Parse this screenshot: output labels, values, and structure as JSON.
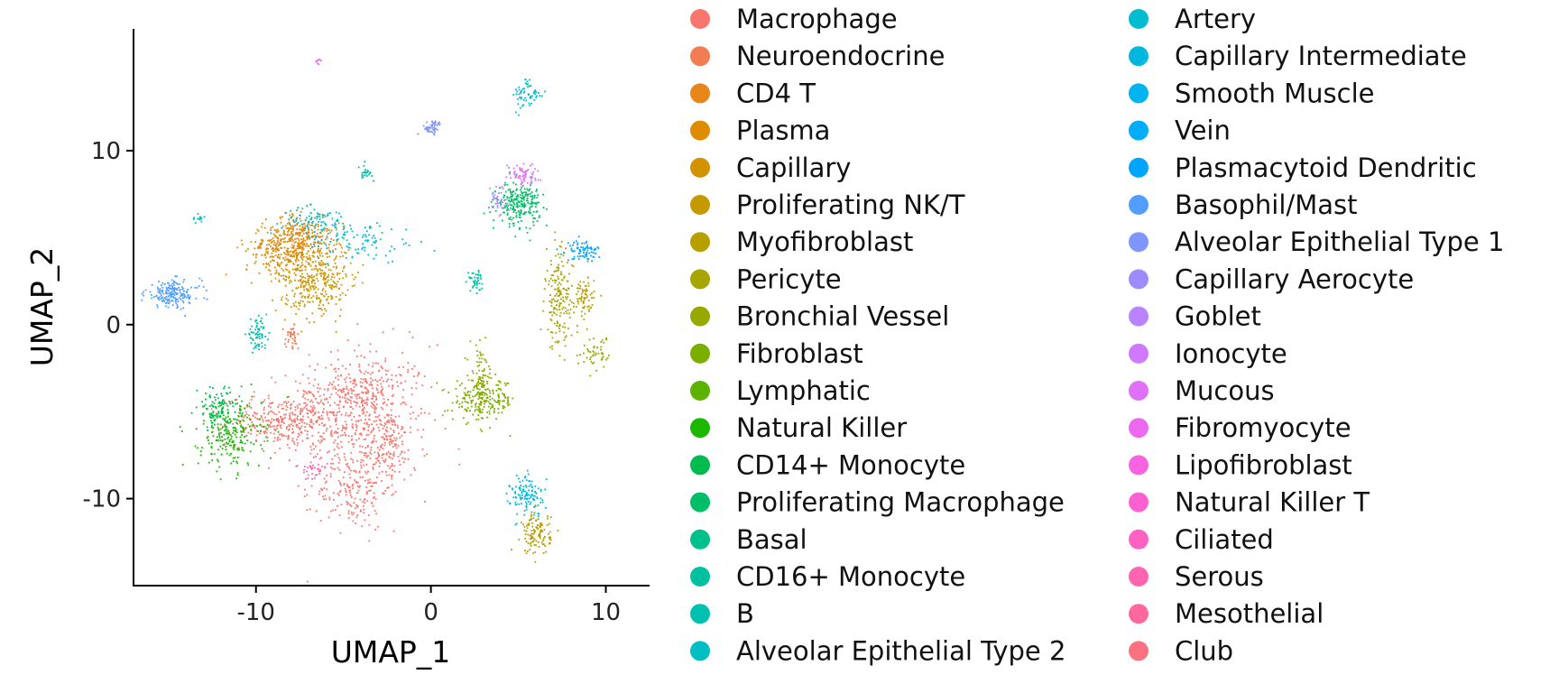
{
  "chart_data": {
    "type": "scatter",
    "title": "",
    "xlabel": "UMAP_1",
    "ylabel": "UMAP_2",
    "xlim": [
      -17,
      12.5
    ],
    "ylim": [
      -15,
      17
    ],
    "xticks": [
      -10,
      0,
      10
    ],
    "yticks": [
      -10,
      0,
      10
    ],
    "xtick_labels": [
      "-10",
      "0",
      "10"
    ],
    "ytick_labels": [
      "-10",
      "0",
      "10"
    ],
    "grid": false,
    "legend_position": "right",
    "categories": [
      {
        "name": "Macrophage",
        "color": "#F8766D"
      },
      {
        "name": "Neuroendocrine",
        "color": "#F27D52"
      },
      {
        "name": "CD4 T",
        "color": "#E8861A"
      },
      {
        "name": "Plasma",
        "color": "#DE8C00"
      },
      {
        "name": "Capillary",
        "color": "#D39200"
      },
      {
        "name": "Proliferating NK/T",
        "color": "#C59A00"
      },
      {
        "name": "Myofibroblast",
        "color": "#B79F00"
      },
      {
        "name": "Pericyte",
        "color": "#A8A400"
      },
      {
        "name": "Bronchial Vessel",
        "color": "#97A900"
      },
      {
        "name": "Fibroblast",
        "color": "#7CAE00"
      },
      {
        "name": "Lymphatic",
        "color": "#5BB300"
      },
      {
        "name": "Natural Killer",
        "color": "#1CB800"
      },
      {
        "name": "CD14+ Monocyte",
        "color": "#00BB4E"
      },
      {
        "name": "Proliferating Macrophage",
        "color": "#00BE67"
      },
      {
        "name": "Basal",
        "color": "#00C08B"
      },
      {
        "name": "CD16+ Monocyte",
        "color": "#00C19F"
      },
      {
        "name": "B",
        "color": "#00C0AF"
      },
      {
        "name": "Alveolar Epithelial Type 2",
        "color": "#00BFC4"
      },
      {
        "name": "Artery",
        "color": "#00BCD1"
      },
      {
        "name": "Capillary Intermediate",
        "color": "#00B8DE"
      },
      {
        "name": "Smooth Muscle",
        "color": "#00B4EF"
      },
      {
        "name": "Vein",
        "color": "#00ADFA"
      },
      {
        "name": "Plasmacytoid Dendritic",
        "color": "#00A5FF"
      },
      {
        "name": "Basophil/Mast",
        "color": "#529EFF"
      },
      {
        "name": "Alveolar Epithelial Type 1",
        "color": "#7F96FF"
      },
      {
        "name": "Capillary Aerocyte",
        "color": "#9E8CFF"
      },
      {
        "name": "Goblet",
        "color": "#B983FF"
      },
      {
        "name": "Ionocyte",
        "color": "#CE79FF"
      },
      {
        "name": "Mucous",
        "color": "#DF70F8"
      },
      {
        "name": "Fibromyocyte",
        "color": "#EC69EF"
      },
      {
        "name": "Lipofibroblast",
        "color": "#F763E0"
      },
      {
        "name": "Natural Killer T",
        "color": "#FD61D1"
      },
      {
        "name": "Ciliated",
        "color": "#FF61C3"
      },
      {
        "name": "Serous",
        "color": "#FF64B0"
      },
      {
        "name": "Mesothelial",
        "color": "#FF689F"
      },
      {
        "name": "Club",
        "color": "#FC717F"
      }
    ],
    "clusters": [
      {
        "color": "#F8766D",
        "cx": -4,
        "cy": -5.5,
        "sx": 2.0,
        "sy": 2.2,
        "n": 520
      },
      {
        "color": "#F8766D",
        "cx": -8.5,
        "cy": -5.5,
        "sx": 1.6,
        "sy": 0.7,
        "n": 320
      },
      {
        "color": "#F8766D",
        "cx": -4.5,
        "cy": -9.5,
        "sx": 1.0,
        "sy": 1.1,
        "n": 160
      },
      {
        "color": "#F8766D",
        "cx": -2.5,
        "cy": -6.8,
        "sx": 0.6,
        "sy": 1.0,
        "n": 110
      },
      {
        "color": "#F8766D",
        "cx": -4.5,
        "cy": -3.8,
        "sx": 1.4,
        "sy": 0.6,
        "n": 160
      },
      {
        "color": "#DE8C00",
        "cx": -8.2,
        "cy": 4.4,
        "sx": 1.2,
        "sy": 0.8,
        "n": 300
      },
      {
        "color": "#D39200",
        "cx": -7,
        "cy": 3.5,
        "sx": 1.2,
        "sy": 1.2,
        "n": 260
      },
      {
        "color": "#C59A00",
        "cx": -6.5,
        "cy": 2.0,
        "sx": 0.8,
        "sy": 0.9,
        "n": 140
      },
      {
        "color": "#E8861A",
        "cx": -7.5,
        "cy": 5.3,
        "sx": 0.9,
        "sy": 0.5,
        "n": 130
      },
      {
        "color": "#00BFC4",
        "cx": -6.5,
        "cy": 6.0,
        "sx": 1.0,
        "sy": 0.4,
        "n": 90
      },
      {
        "color": "#00BCD1",
        "cx": -4,
        "cy": 4.8,
        "sx": 1.6,
        "sy": 0.6,
        "n": 90
      },
      {
        "color": "#1CB800",
        "cx": -11.5,
        "cy": -6.3,
        "sx": 0.9,
        "sy": 1.0,
        "n": 220
      },
      {
        "color": "#00BB4E",
        "cx": -12.2,
        "cy": -4.8,
        "sx": 0.6,
        "sy": 0.6,
        "n": 110
      },
      {
        "color": "#529EFF",
        "cx": -14.8,
        "cy": 1.8,
        "sx": 0.8,
        "sy": 0.4,
        "n": 190
      },
      {
        "color": "#00C0AF",
        "cx": -10,
        "cy": -0.5,
        "sx": 0.3,
        "sy": 0.4,
        "n": 70
      },
      {
        "color": "#7CAE00",
        "cx": 3.0,
        "cy": -4.3,
        "sx": 0.9,
        "sy": 0.6,
        "n": 210
      },
      {
        "color": "#97A900",
        "cx": 2.8,
        "cy": -3.0,
        "sx": 0.3,
        "sy": 0.9,
        "n": 80
      },
      {
        "color": "#00BE67",
        "cx": 5,
        "cy": 7.0,
        "sx": 0.6,
        "sy": 0.6,
        "n": 240
      },
      {
        "color": "#DF70F8",
        "cx": 5.2,
        "cy": 8.7,
        "sx": 0.5,
        "sy": 0.3,
        "n": 70
      },
      {
        "color": "#9E8CFF",
        "cx": 3.8,
        "cy": 7.2,
        "sx": 0.25,
        "sy": 0.5,
        "n": 40
      },
      {
        "color": "#00B8DE",
        "cx": 5.5,
        "cy": -9.8,
        "sx": 0.5,
        "sy": 0.6,
        "n": 120
      },
      {
        "color": "#B79F00",
        "cx": 6,
        "cy": -12,
        "sx": 0.4,
        "sy": 0.6,
        "n": 120
      },
      {
        "color": "#A8A400",
        "cx": 7.3,
        "cy": 1.5,
        "sx": 0.4,
        "sy": 1.4,
        "n": 180
      },
      {
        "color": "#B79F00",
        "cx": 8.7,
        "cy": 1.5,
        "sx": 0.3,
        "sy": 0.6,
        "n": 70
      },
      {
        "color": "#00A5FF",
        "cx": 8.7,
        "cy": 4.3,
        "sx": 0.5,
        "sy": 0.3,
        "n": 80
      },
      {
        "color": "#00BCD1",
        "cx": 5.5,
        "cy": 13.2,
        "sx": 0.4,
        "sy": 0.5,
        "n": 60
      },
      {
        "color": "#7F96FF",
        "cx": 0,
        "cy": 11.4,
        "sx": 0.3,
        "sy": 0.2,
        "n": 50
      },
      {
        "color": "#00C19F",
        "cx": 2.5,
        "cy": 2.6,
        "sx": 0.2,
        "sy": 0.3,
        "n": 40
      },
      {
        "color": "#00C19F",
        "cx": -3.8,
        "cy": 8.8,
        "sx": 0.2,
        "sy": 0.2,
        "n": 25
      },
      {
        "color": "#F27D52",
        "cx": -8,
        "cy": -0.7,
        "sx": 0.2,
        "sy": 0.3,
        "n": 40
      },
      {
        "color": "#00BFC4",
        "cx": -13.3,
        "cy": 6.2,
        "sx": 0.2,
        "sy": 0.15,
        "n": 15
      },
      {
        "color": "#FF64B0",
        "cx": -6.8,
        "cy": -8.2,
        "sx": 0.3,
        "sy": 0.4,
        "n": 30
      },
      {
        "color": "#97A900",
        "cx": 9.5,
        "cy": -1.5,
        "sx": 0.5,
        "sy": 0.5,
        "n": 50
      },
      {
        "color": "#EC69EF",
        "cx": -6.5,
        "cy": 15.2,
        "sx": 0.15,
        "sy": 0.1,
        "n": 8
      }
    ]
  }
}
